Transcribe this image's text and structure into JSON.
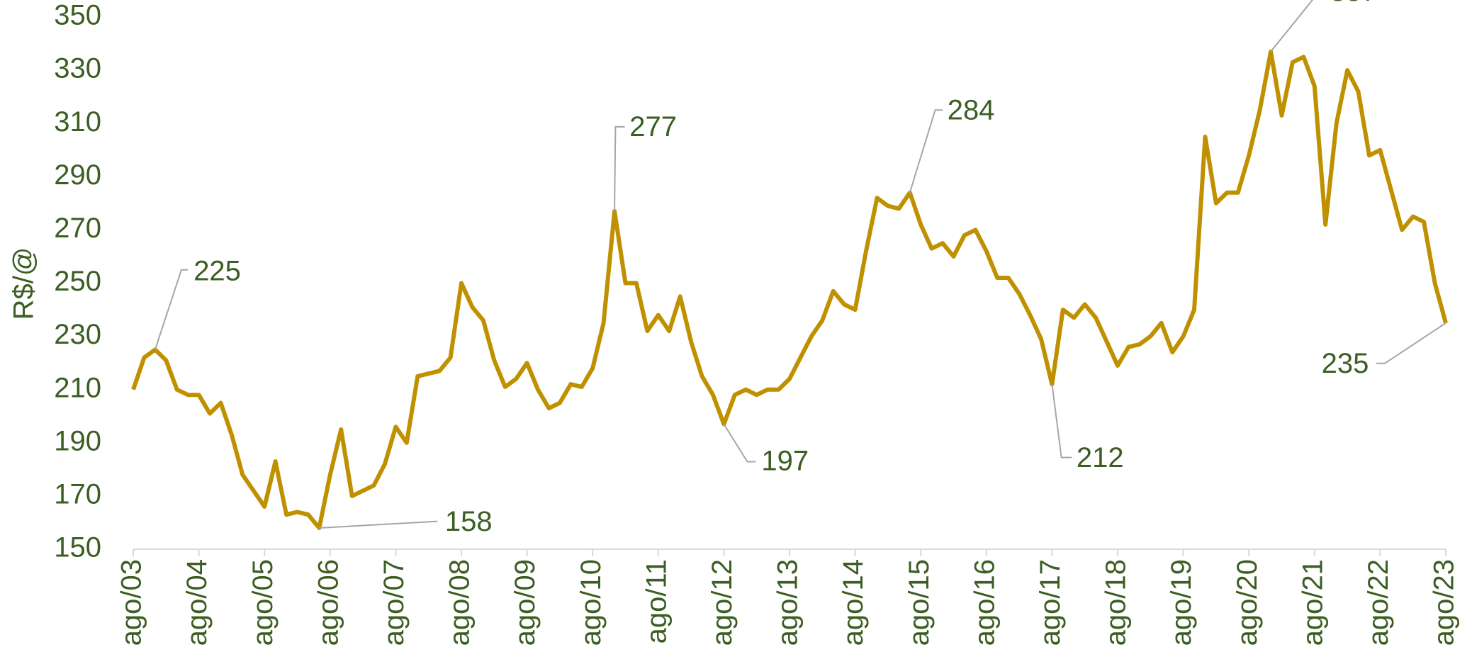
{
  "chart_data": {
    "type": "line",
    "y_label": "R$/@",
    "categories": [
      "ago/03",
      null,
      null,
      null,
      null,
      null,
      "ago/04",
      null,
      null,
      null,
      null,
      null,
      "ago/05",
      null,
      null,
      null,
      null,
      null,
      "ago/06",
      null,
      null,
      null,
      null,
      null,
      "ago/07",
      null,
      null,
      null,
      null,
      null,
      "ago/08",
      null,
      null,
      null,
      null,
      null,
      "ago/09",
      null,
      null,
      null,
      null,
      null,
      "ago/10",
      null,
      null,
      null,
      null,
      null,
      "ago/11",
      null,
      null,
      null,
      null,
      null,
      "ago/12",
      null,
      null,
      null,
      null,
      null,
      "ago/13",
      null,
      null,
      null,
      null,
      null,
      "ago/14",
      null,
      null,
      null,
      null,
      null,
      "ago/15",
      null,
      null,
      null,
      null,
      null,
      "ago/16",
      null,
      null,
      null,
      null,
      null,
      "ago/17",
      null,
      null,
      null,
      null,
      null,
      "ago/18",
      null,
      null,
      null,
      null,
      null,
      "ago/19",
      null,
      null,
      null,
      null,
      null,
      "ago/20",
      null,
      null,
      null,
      null,
      null,
      "ago/21",
      null,
      null,
      null,
      null,
      null,
      "ago/22",
      null,
      null,
      null,
      null,
      null,
      "ago/23"
    ],
    "series": [
      {
        "name": "R$/@",
        "color": "#bf9000",
        "values": [
          210,
          222,
          225,
          221,
          210,
          208,
          208,
          201,
          205,
          193,
          178,
          172,
          166,
          183,
          163,
          164,
          163,
          158,
          178,
          195,
          170,
          172,
          174,
          182,
          196,
          190,
          215,
          216,
          217,
          222,
          250,
          241,
          236,
          221,
          211,
          214,
          220,
          210,
          203,
          205,
          212,
          211,
          218,
          235,
          277,
          250,
          250,
          232,
          238,
          232,
          245,
          228,
          215,
          208,
          197,
          208,
          210,
          208,
          210,
          210,
          214,
          222,
          230,
          236,
          247,
          242,
          240,
          262,
          282,
          279,
          278,
          284,
          272,
          263,
          265,
          260,
          268,
          270,
          262,
          252,
          252,
          246,
          238,
          229,
          212,
          240,
          237,
          242,
          237,
          228,
          219,
          226,
          227,
          230,
          235,
          224,
          230,
          240,
          305,
          280,
          284,
          284,
          298,
          315,
          337,
          313,
          333,
          335,
          324,
          272,
          310,
          330,
          322,
          298,
          300,
          285,
          270,
          275,
          273,
          250,
          235
        ]
      }
    ],
    "ylim": [
      150,
      350
    ],
    "yticks": [
      150,
      170,
      190,
      210,
      230,
      250,
      270,
      290,
      310,
      330,
      350
    ]
  }
}
